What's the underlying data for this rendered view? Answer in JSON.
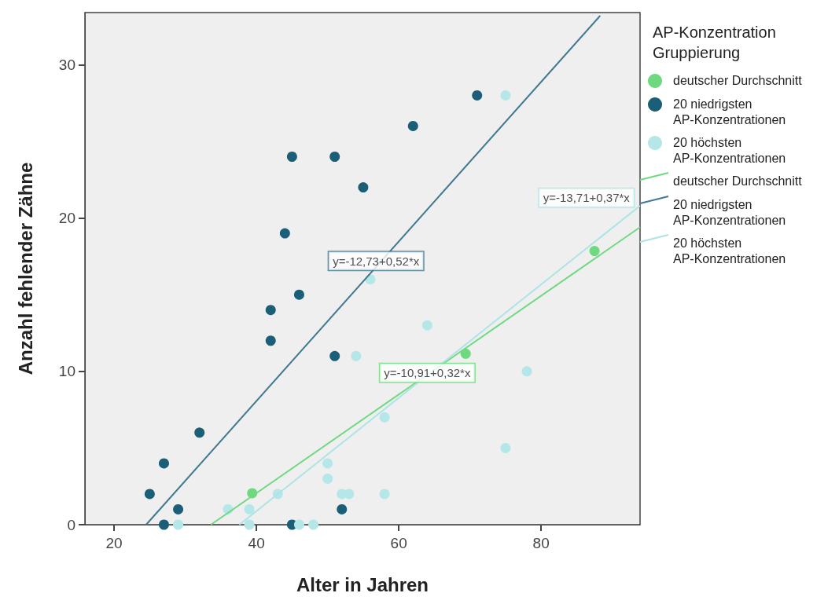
{
  "chart_data": {
    "type": "scatter",
    "xlabel": "Alter in Jahren",
    "ylabel": "Anzahl fehlender Zähne",
    "legend_title": "AP-Konzentration Gruppierung",
    "legend": "right",
    "grid": false,
    "marker": "circle",
    "xlim": [
      15.9,
      93.9
    ],
    "xticks": [
      20,
      40,
      60,
      80
    ],
    "ylim": [
      0,
      33.4
    ],
    "yticks": [
      0,
      10,
      20,
      30
    ],
    "series": [
      {
        "name": "deutscher Durchschnitt",
        "color": "#6fd97f",
        "x": [
          39.4,
          69.4,
          87.5
        ],
        "values": [
          2.05,
          11.15,
          17.85
        ]
      },
      {
        "name": "20 niedrigsten AP-Konzentrationen",
        "color": "#1a5e78",
        "x": [
          25,
          27,
          27,
          29,
          32,
          42,
          42,
          44,
          45,
          45,
          46,
          51,
          51,
          52,
          55,
          62,
          71
        ],
        "values": [
          2,
          4,
          0,
          1,
          6,
          14,
          12,
          19,
          24,
          0,
          15,
          24,
          11,
          1,
          22,
          26,
          28
        ]
      },
      {
        "name": "20 höchsten AP-Konzentrationen",
        "color": "#b5e6e8",
        "x": [
          29,
          36,
          39,
          39,
          43,
          46,
          48,
          50,
          50,
          52,
          53,
          54,
          56,
          58,
          58,
          64,
          75,
          75,
          78
        ],
        "values": [
          0,
          1,
          1,
          0,
          2,
          0,
          0,
          4,
          3,
          2,
          2,
          11,
          16,
          7,
          2,
          13,
          28,
          5,
          10
        ]
      },
      {
        "name": "deutscher Durchschnitt",
        "type": "line",
        "marker": "none",
        "color": "#6fd97f",
        "x": [
          33.6,
          93.9
        ],
        "values": [
          0,
          19.4
        ]
      },
      {
        "name": "20 niedrigsten AP-Konzentrationen",
        "type": "line",
        "marker": "none",
        "color": "#3f7890",
        "x": [
          24.5,
          88.3
        ],
        "values": [
          0,
          33.2
        ]
      },
      {
        "name": "20 höchsten AP-Konzentrationen",
        "type": "line",
        "marker": "none",
        "color": "#aee3e6",
        "x": [
          37.6,
          93.9
        ],
        "values": [
          0,
          20.8
        ]
      }
    ],
    "annotations": [
      {
        "text": "y=-10,91+0,32*x",
        "x": 64,
        "y": 9.9
      },
      {
        "text": "y=-12,73+0,52*x",
        "x": 56.8,
        "y": 17.2
      },
      {
        "text": "y=-13,71+0,37*x",
        "x": 93,
        "y": 20.5
      }
    ]
  }
}
